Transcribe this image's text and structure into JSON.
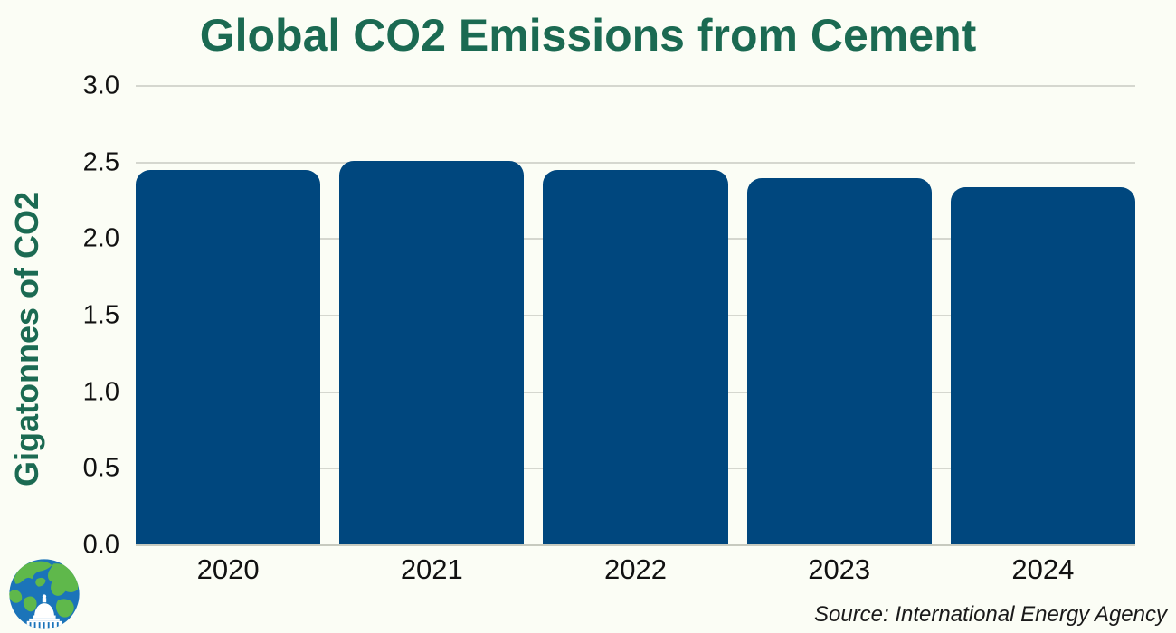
{
  "chart": {
    "title": "Global CO2 Emissions from Cement",
    "ylabel": "Gigatonnes of CO2",
    "source": "Source: International Energy Agency"
  },
  "chart_data": {
    "type": "bar",
    "title": "Global CO2 Emissions from Cement",
    "categories": [
      "2020",
      "2021",
      "2022",
      "2023",
      "2024"
    ],
    "values": [
      2.45,
      2.51,
      2.45,
      2.4,
      2.34
    ],
    "xlabel": "",
    "ylabel": "Gigatonnes of CO2",
    "ylim": [
      0,
      3.0
    ],
    "ytick_step": 0.5,
    "yticks": [
      "0.0",
      "0.5",
      "1.0",
      "1.5",
      "2.0",
      "2.5",
      "3.0"
    ],
    "grid": true,
    "legend": false,
    "source": "Source: International Energy Agency",
    "annotations": []
  },
  "colors": {
    "background": "#FBFDF5",
    "bar": "#00477E",
    "title_green": "#1B6A52",
    "tick_text": "#111111",
    "gridline": "#D5D7CF",
    "logo_ocean_blue": "#1B74B9",
    "logo_land_green": "#5FB84B",
    "logo_capitol_white": "#FFFFFF"
  },
  "logo": {
    "name": "globe-capitol-logo"
  }
}
